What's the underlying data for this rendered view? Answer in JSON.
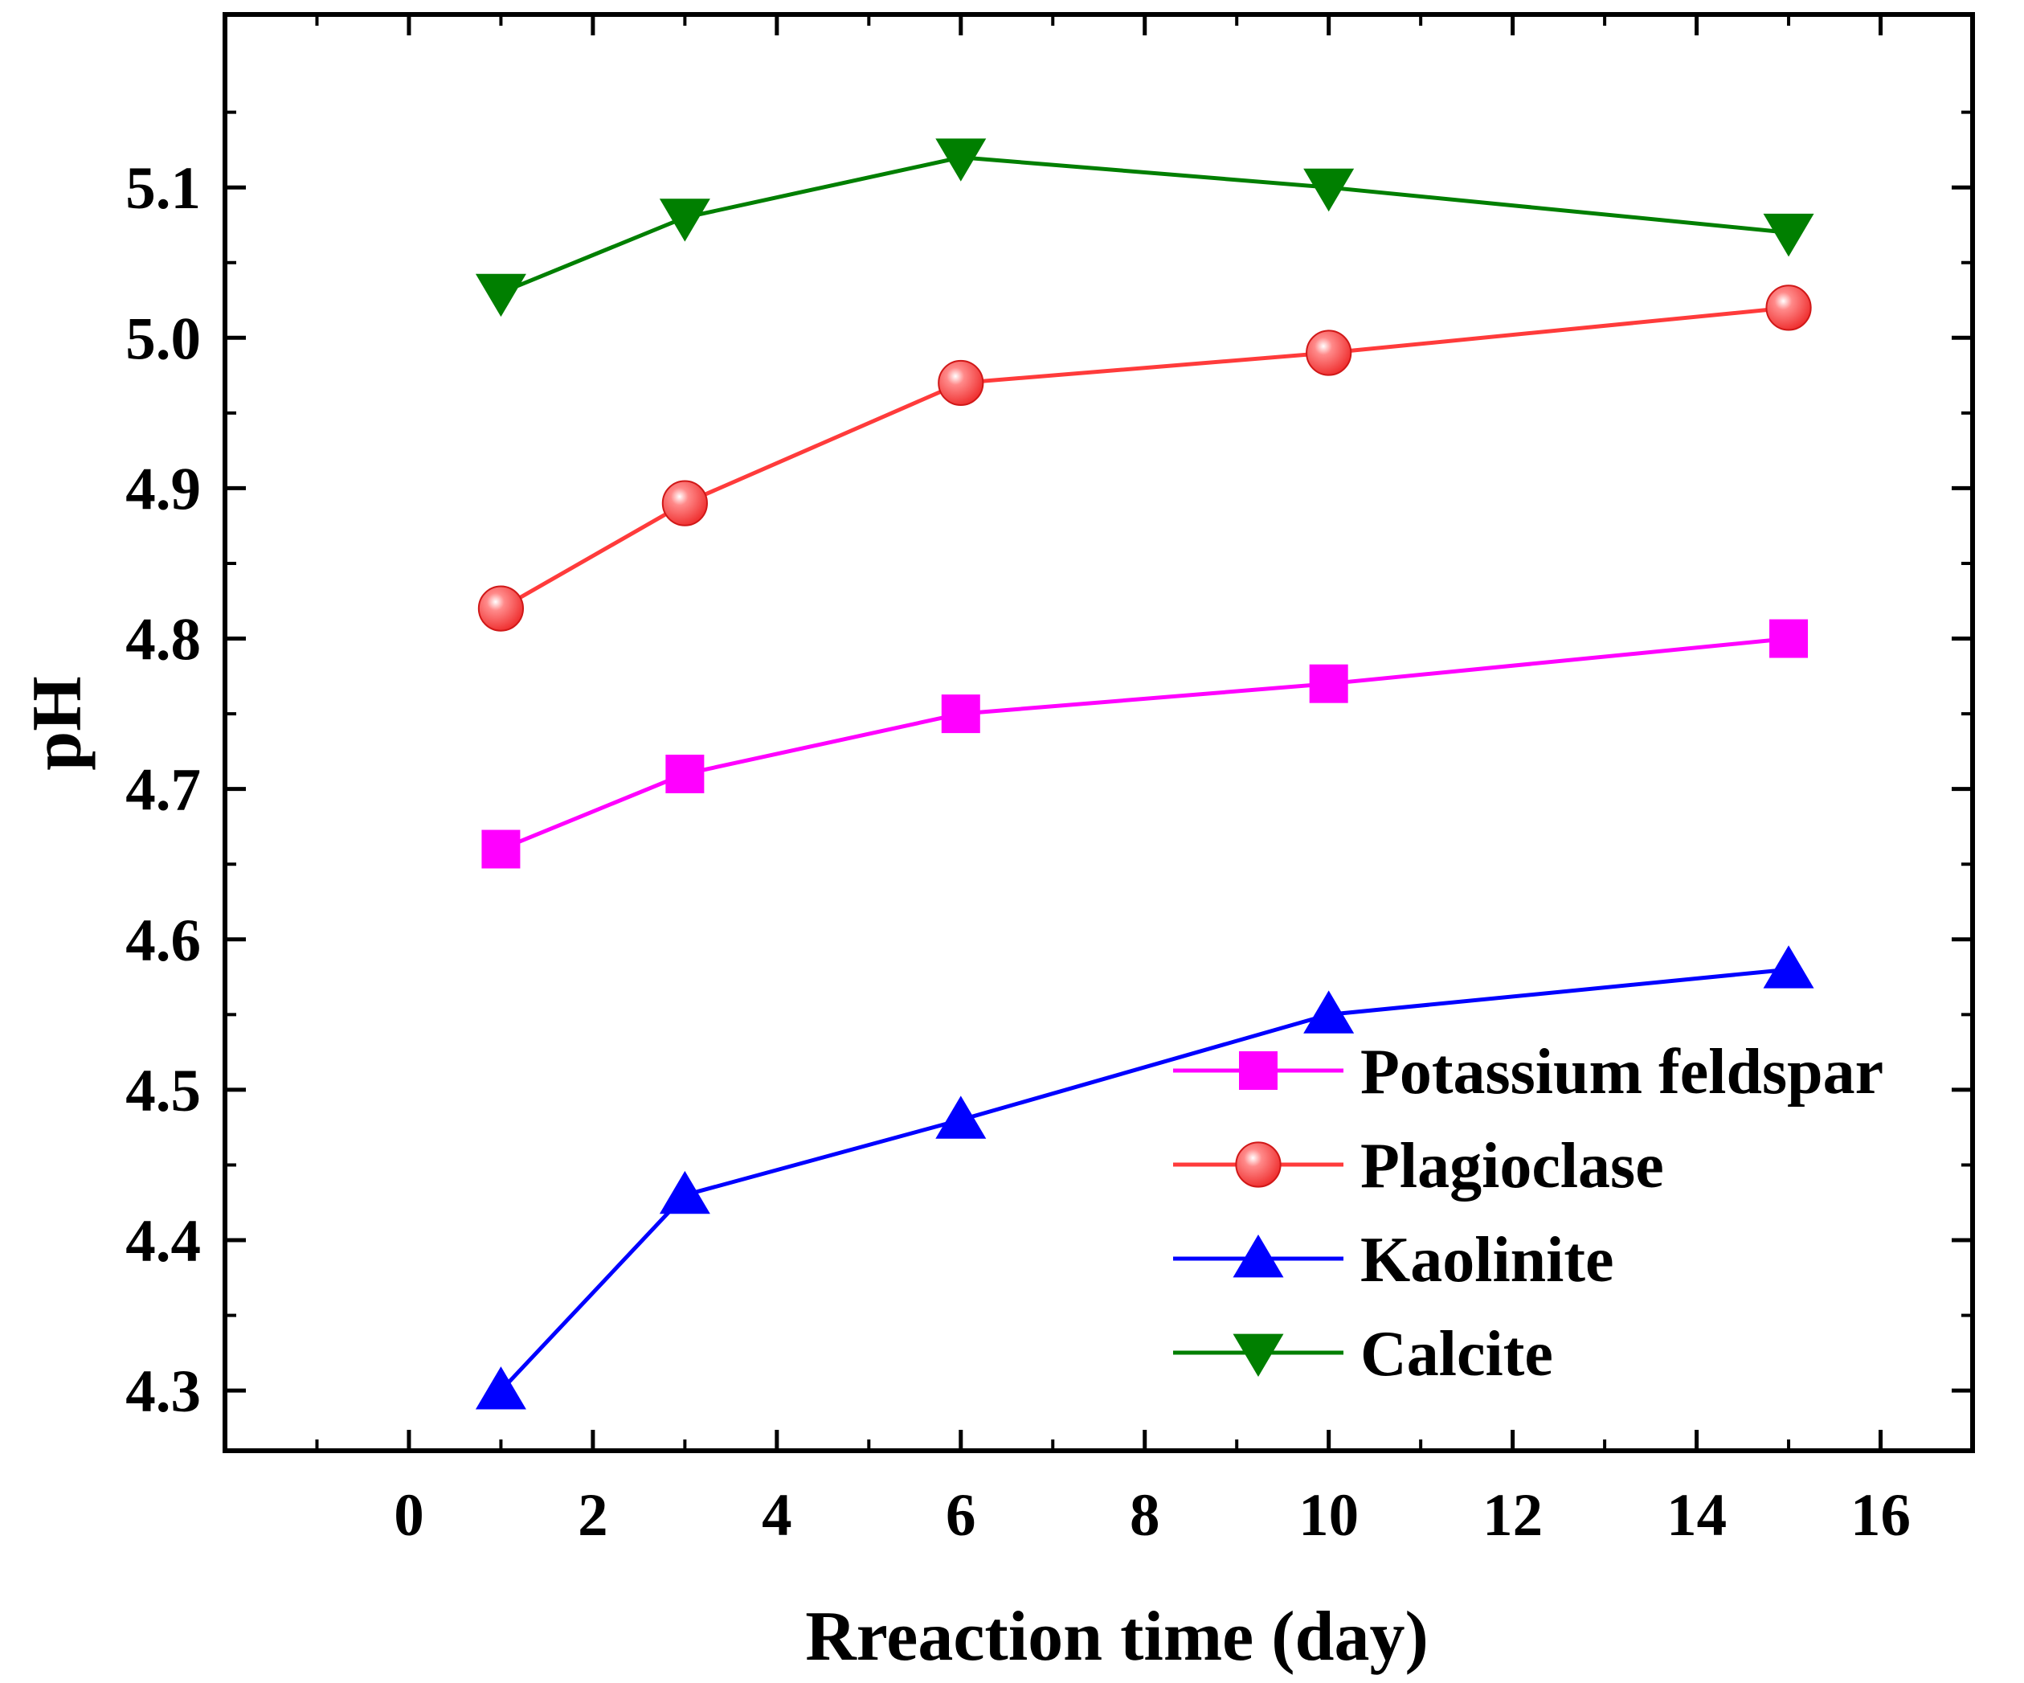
{
  "chart_data": {
    "type": "line",
    "title": "",
    "xlabel": "Rreaction time (day)",
    "ylabel": "pH",
    "xlim": [
      -2,
      17
    ],
    "ylim": [
      4.26,
      5.215
    ],
    "xticks": [
      0,
      2,
      4,
      6,
      8,
      10,
      12,
      14,
      16
    ],
    "xtick_labels": [
      "0",
      "2",
      "4",
      "6",
      "8",
      "10",
      "12",
      "14",
      "16"
    ],
    "yticks": [
      4.3,
      4.4,
      4.5,
      4.6,
      4.7,
      4.8,
      4.9,
      5.0,
      5.1
    ],
    "ytick_labels": [
      "4.3",
      "4.4",
      "4.5",
      "4.6",
      "4.7",
      "4.8",
      "4.9",
      "5.0",
      "5.1"
    ],
    "grid": false,
    "legend_position": "bottom-right",
    "x": [
      1,
      3,
      6,
      10,
      15
    ],
    "series": [
      {
        "name": "Potassium feldspar",
        "values": [
          4.66,
          4.71,
          4.75,
          4.77,
          4.8
        ],
        "color": "#ff00ff",
        "marker": "square"
      },
      {
        "name": "Plagioclase",
        "values": [
          4.82,
          4.89,
          4.97,
          4.99,
          5.02
        ],
        "color": "#ff3b3b",
        "marker": "circle"
      },
      {
        "name": "Kaolinite",
        "values": [
          4.3,
          4.43,
          4.48,
          4.55,
          4.58
        ],
        "color": "#0000ff",
        "marker": "triangle-up"
      },
      {
        "name": "Calcite",
        "values": [
          5.03,
          5.08,
          5.12,
          5.1,
          5.07
        ],
        "color": "#007f00",
        "marker": "triangle-down"
      }
    ]
  }
}
